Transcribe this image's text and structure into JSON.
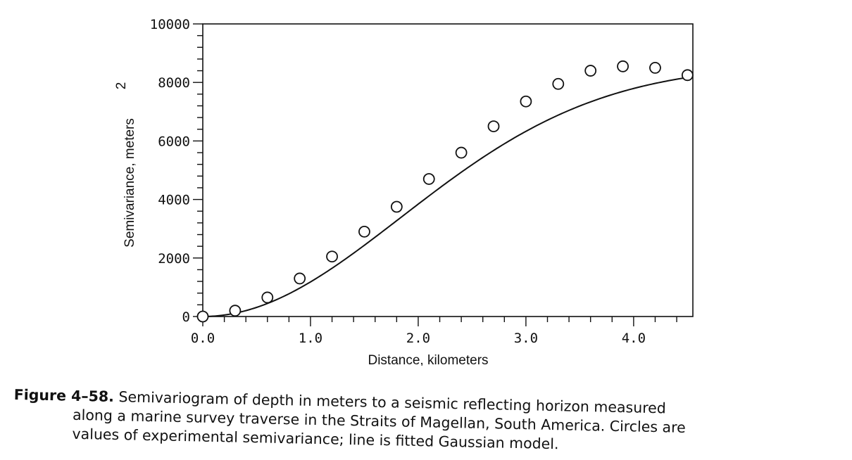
{
  "chart_data": {
    "type": "scatter",
    "xlabel": "Distance, kilometers",
    "ylabel": "Semivariance, meters",
    "ylabel_superscript": "2",
    "xlim": [
      0,
      4.55
    ],
    "ylim": [
      0,
      10000
    ],
    "x_ticks": [
      0,
      1,
      2,
      3,
      4
    ],
    "x_tick_labels": [
      "0.0",
      "1.0",
      "2.0",
      "3.0",
      "4.0"
    ],
    "x_minor_step": 0.2,
    "y_ticks": [
      0,
      2000,
      4000,
      6000,
      8000,
      10000
    ],
    "y_tick_labels": [
      "0",
      "2000",
      "4000",
      "6000",
      "8000",
      "10000"
    ],
    "y_minor_step": 400,
    "grid": false,
    "series": [
      {
        "kind": "points",
        "marker": "open-circle",
        "x": [
          0.0,
          0.3,
          0.6,
          0.9,
          1.2,
          1.5,
          1.8,
          2.1,
          2.4,
          2.7,
          3.0,
          3.3,
          3.6,
          3.9,
          4.2,
          4.5
        ],
        "y": [
          0,
          200,
          650,
          1300,
          2050,
          2900,
          3750,
          4700,
          5600,
          6500,
          7350,
          7950,
          8400,
          8550,
          8500,
          8250
        ]
      },
      {
        "kind": "line",
        "model": "gaussian",
        "sill": 8600,
        "range_km": 2.6
      }
    ]
  },
  "caption": {
    "figure_number": "Figure 4–58.",
    "line1": "Semivariogram of depth in meters to a seismic reflecting horizon measured",
    "line2": "along a marine survey traverse in the Straits of Magellan, South America.  Circles are",
    "line3": "values of experimental semivariance; line is fitted Gaussian model."
  }
}
